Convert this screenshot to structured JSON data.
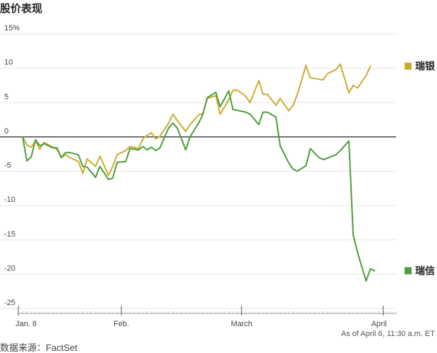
{
  "chart_data": {
    "type": "line",
    "title": "股价表现",
    "unit_suffix": "%",
    "ylim": [
      -25,
      15
    ],
    "yticks": [
      15,
      10,
      5,
      0,
      -5,
      -10,
      -15,
      -20,
      -25
    ],
    "ytick_labels": [
      "15%",
      "10",
      "5",
      "0",
      "-5",
      "-10",
      "-15",
      "-20",
      "-25"
    ],
    "xlim": [
      "2023-01-08",
      "2023-04-06"
    ],
    "x_ticks": [
      {
        "date": "2023-01-08",
        "label": "Jan. 8"
      },
      {
        "date": "2023-02-01",
        "label": "Feb."
      },
      {
        "date": "2023-03-01",
        "label": "March"
      },
      {
        "date": "2023-04-03",
        "label": "April"
      }
    ],
    "grid": true,
    "legend_placement": "right, labels at line ends",
    "note": "As of April 6, 11:30 a.m. ET",
    "source": "数据来源：FactSet",
    "series": [
      {
        "name": "瑞银",
        "color": "#c9ac32",
        "points": [
          [
            "2023-01-09",
            0.0
          ],
          [
            "2023-01-10",
            -1.2
          ],
          [
            "2023-01-11",
            -1.5
          ],
          [
            "2023-01-12",
            -0.6
          ],
          [
            "2023-01-13",
            -1.8
          ],
          [
            "2023-01-14",
            -0.8
          ],
          [
            "2023-01-16",
            -1.5
          ],
          [
            "2023-01-17",
            -1.8
          ],
          [
            "2023-01-18",
            -3.0
          ],
          [
            "2023-01-19",
            -2.6
          ],
          [
            "2023-01-20",
            -3.0
          ],
          [
            "2023-01-22",
            -3.6
          ],
          [
            "2023-01-23",
            -5.3
          ],
          [
            "2023-01-24",
            -3.2
          ],
          [
            "2023-01-26",
            -4.3
          ],
          [
            "2023-01-27",
            -2.8
          ],
          [
            "2023-01-29",
            -5.6
          ],
          [
            "2023-01-30",
            -4.3
          ],
          [
            "2023-01-31",
            -2.6
          ],
          [
            "2023-02-02",
            -2.0
          ],
          [
            "2023-02-03",
            -1.4
          ],
          [
            "2023-02-05",
            -1.7
          ],
          [
            "2023-02-06",
            -0.3
          ],
          [
            "2023-02-07",
            0.2
          ],
          [
            "2023-02-08",
            0.6
          ],
          [
            "2023-02-09",
            -0.3
          ],
          [
            "2023-02-10",
            0.1
          ],
          [
            "2023-02-12",
            2.0
          ],
          [
            "2023-02-13",
            3.3
          ],
          [
            "2023-02-14",
            2.4
          ],
          [
            "2023-02-16",
            0.8
          ],
          [
            "2023-02-17",
            1.8
          ],
          [
            "2023-02-19",
            3.2
          ],
          [
            "2023-02-20",
            3.4
          ],
          [
            "2023-02-21",
            5.6
          ],
          [
            "2023-02-23",
            6.0
          ],
          [
            "2023-02-24",
            3.3
          ],
          [
            "2023-02-26",
            5.4
          ],
          [
            "2023-02-27",
            6.8
          ],
          [
            "2023-02-28",
            6.8
          ],
          [
            "2023-03-02",
            5.9
          ],
          [
            "2023-03-03",
            5.0
          ],
          [
            "2023-03-05",
            8.2
          ],
          [
            "2023-03-06",
            6.2
          ],
          [
            "2023-03-07",
            6.2
          ],
          [
            "2023-03-09",
            4.6
          ],
          [
            "2023-03-10",
            5.6
          ],
          [
            "2023-03-12",
            3.8
          ],
          [
            "2023-03-13",
            4.6
          ],
          [
            "2023-03-14",
            6.2
          ],
          [
            "2023-03-16",
            10.4
          ],
          [
            "2023-03-17",
            8.6
          ],
          [
            "2023-03-19",
            8.4
          ],
          [
            "2023-03-20",
            8.3
          ],
          [
            "2023-03-21",
            9.2
          ],
          [
            "2023-03-23",
            9.8
          ],
          [
            "2023-03-24",
            10.6
          ],
          [
            "2023-03-26",
            6.4
          ],
          [
            "2023-03-27",
            7.5
          ],
          [
            "2023-03-28",
            7.1
          ],
          [
            "2023-03-30",
            8.9
          ],
          [
            "2023-03-31",
            10.3
          ]
        ]
      },
      {
        "name": "瑞信",
        "color": "#4a9e3a",
        "points": [
          [
            "2023-01-09",
            0.0
          ],
          [
            "2023-01-10",
            -3.5
          ],
          [
            "2023-01-11",
            -2.9
          ],
          [
            "2023-01-12",
            -0.4
          ],
          [
            "2023-01-13",
            -1.3
          ],
          [
            "2023-01-14",
            -1.0
          ],
          [
            "2023-01-16",
            -1.6
          ],
          [
            "2023-01-17",
            -1.6
          ],
          [
            "2023-01-18",
            -3.0
          ],
          [
            "2023-01-19",
            -2.3
          ],
          [
            "2023-01-20",
            -2.3
          ],
          [
            "2023-01-22",
            -2.6
          ],
          [
            "2023-01-23",
            -4.3
          ],
          [
            "2023-01-24",
            -4.4
          ],
          [
            "2023-01-26",
            -5.9
          ],
          [
            "2023-01-27",
            -4.3
          ],
          [
            "2023-01-29",
            -6.2
          ],
          [
            "2023-01-30",
            -6.0
          ],
          [
            "2023-01-31",
            -3.7
          ],
          [
            "2023-02-02",
            -3.6
          ],
          [
            "2023-02-03",
            -1.7
          ],
          [
            "2023-02-05",
            -1.9
          ],
          [
            "2023-02-06",
            -1.4
          ],
          [
            "2023-02-07",
            -1.9
          ],
          [
            "2023-02-08",
            -1.5
          ],
          [
            "2023-02-09",
            -2.0
          ],
          [
            "2023-02-10",
            -1.6
          ],
          [
            "2023-02-12",
            1.3
          ],
          [
            "2023-02-13",
            2.0
          ],
          [
            "2023-02-14",
            1.3
          ],
          [
            "2023-02-16",
            -1.9
          ],
          [
            "2023-02-17",
            0.0
          ],
          [
            "2023-02-19",
            2.0
          ],
          [
            "2023-02-20",
            3.3
          ],
          [
            "2023-02-21",
            5.7
          ],
          [
            "2023-02-23",
            6.5
          ],
          [
            "2023-02-24",
            4.4
          ],
          [
            "2023-02-26",
            6.7
          ],
          [
            "2023-02-27",
            4.0
          ],
          [
            "2023-03-02",
            3.6
          ],
          [
            "2023-03-03",
            3.3
          ],
          [
            "2023-03-05",
            1.8
          ],
          [
            "2023-03-06",
            3.6
          ],
          [
            "2023-03-07",
            3.6
          ],
          [
            "2023-03-09",
            2.9
          ],
          [
            "2023-03-10",
            -1.3
          ],
          [
            "2023-03-12",
            -3.8
          ],
          [
            "2023-03-13",
            -4.7
          ],
          [
            "2023-03-14",
            -5.0
          ],
          [
            "2023-03-16",
            -4.2
          ],
          [
            "2023-03-17",
            -1.7
          ],
          [
            "2023-03-19",
            -3.0
          ],
          [
            "2023-03-20",
            -3.3
          ],
          [
            "2023-03-21",
            -3.1
          ],
          [
            "2023-03-23",
            -2.6
          ],
          [
            "2023-03-24",
            -2.0
          ],
          [
            "2023-03-26",
            -0.6
          ],
          [
            "2023-03-27",
            -14.3
          ],
          [
            "2023-03-28",
            -16.8
          ],
          [
            "2023-03-30",
            -21.0
          ],
          [
            "2023-03-31",
            -19.2
          ],
          [
            "2023-04-01",
            -19.5
          ]
        ]
      }
    ]
  }
}
